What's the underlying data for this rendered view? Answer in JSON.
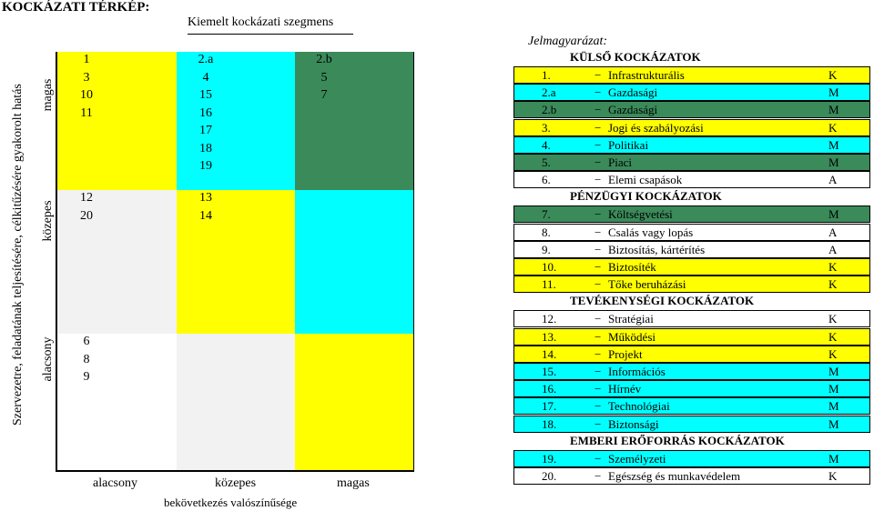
{
  "title": "KOCKÁZATI TÉRKÉP:",
  "subtitle": "Kiemelt kockázati szegmens",
  "y_axis_label": "Szervezetre, feladatának teljesítésére, célkitűzésére gyakorolt hatás",
  "y_levels": [
    "magas",
    "közepes",
    "alacsony"
  ],
  "x_levels": [
    "alacsony",
    "közepes",
    "magas"
  ],
  "x_axis_label": "bekövetkezés valószínűsége",
  "colors": {
    "yellow": "#ffff00",
    "cyan": "#00ffff",
    "green": "#3a8a5a",
    "grey": "#f2f2f2",
    "white": "#ffffff"
  },
  "matrix": {
    "high_low": [
      "1",
      "3",
      "10",
      "11"
    ],
    "high_med": [
      "2.a",
      "4",
      "15",
      "16",
      "17",
      "18",
      "19"
    ],
    "high_high": [
      "2.b",
      "5",
      "7"
    ],
    "med_low": [
      "12",
      "20"
    ],
    "med_med": [
      "13",
      "14"
    ],
    "low_low": [
      "6",
      "8",
      "9"
    ]
  },
  "legend": {
    "heading": "Jelmagyarázat:",
    "groups": [
      {
        "title": "KÜLSŐ KOCKÁZATOK",
        "items": [
          {
            "num": "1.",
            "label": "Infrastrukturális",
            "level": "K",
            "color": "#ffff00"
          },
          {
            "num": "2.a",
            "label": "Gazdasági",
            "level": "M",
            "color": "#00ffff"
          },
          {
            "num": "2.b",
            "label": "Gazdasági",
            "level": "M",
            "color": "#3a8a5a"
          },
          {
            "num": "3.",
            "label": "Jogi és szabályozási",
            "level": "K",
            "color": "#ffff00"
          },
          {
            "num": "4.",
            "label": "Politikai",
            "level": "M",
            "color": "#00ffff"
          },
          {
            "num": "5.",
            "label": "Piaci",
            "level": "M",
            "color": "#3a8a5a"
          },
          {
            "num": "6.",
            "label": "Elemi csapások",
            "level": "A",
            "color": "#ffffff"
          }
        ]
      },
      {
        "title": "PÉNZÜGYI KOCKÁZATOK",
        "items": [
          {
            "num": "7.",
            "label": "Költségvetési",
            "level": "M",
            "color": "#3a8a5a"
          },
          {
            "num": "8.",
            "label": "Csalás vagy lopás",
            "level": "A",
            "color": "#ffffff"
          },
          {
            "num": "9.",
            "label": "Biztosítás, kártérítés",
            "level": "A",
            "color": "#ffffff"
          },
          {
            "num": "10.",
            "label": "Biztosíték",
            "level": "K",
            "color": "#ffff00"
          },
          {
            "num": "11.",
            "label": "Tőke beruházási",
            "level": "K",
            "color": "#ffff00"
          }
        ]
      },
      {
        "title": "TEVÉKENYSÉGI KOCKÁZATOK",
        "items": [
          {
            "num": "12.",
            "label": "Stratégiai",
            "level": "K",
            "color": "#ffffff"
          },
          {
            "num": "13.",
            "label": "Működési",
            "level": "K",
            "color": "#ffff00"
          },
          {
            "num": "14.",
            "label": "Projekt",
            "level": "K",
            "color": "#ffff00"
          },
          {
            "num": "15.",
            "label": "Információs",
            "level": "M",
            "color": "#00ffff"
          },
          {
            "num": "16.",
            "label": "Hírnév",
            "level": "M",
            "color": "#00ffff"
          },
          {
            "num": "17.",
            "label": "Technológiai",
            "level": "M",
            "color": "#00ffff"
          },
          {
            "num": "18.",
            "label": "Biztonsági",
            "level": "M",
            "color": "#00ffff"
          }
        ]
      },
      {
        "title": "EMBERI ERŐFORRÁS KOCKÁZATOK",
        "items": [
          {
            "num": "19.",
            "label": "Személyzeti",
            "level": "M",
            "color": "#00ffff"
          },
          {
            "num": "20.",
            "label": "Egészség és munkavédelem",
            "level": "K",
            "color": "#ffffff"
          }
        ]
      }
    ]
  }
}
